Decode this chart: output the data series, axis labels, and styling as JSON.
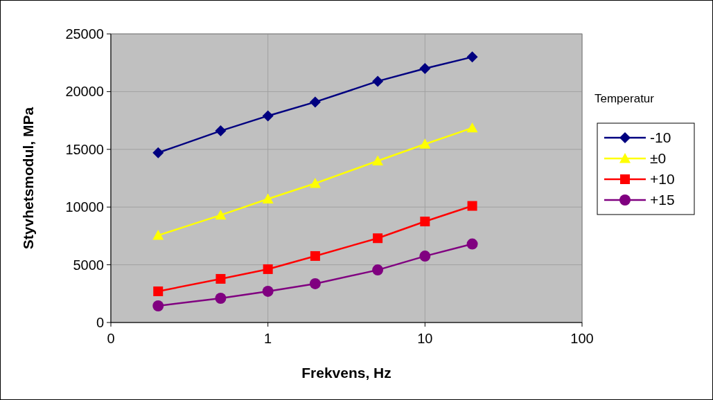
{
  "chart_data": {
    "type": "line",
    "xlabel": "Frekvens, Hz",
    "ylabel": "Styvhetsmodul, MPa",
    "legend_title": "Temperatur",
    "log": "x",
    "x": [
      0.2,
      0.5,
      1,
      2,
      5,
      10,
      20
    ],
    "xlim": [
      0.1,
      100
    ],
    "xticks": [
      {
        "value": 0.1,
        "label": "0"
      },
      1,
      10,
      100
    ],
    "ylim": [
      0,
      25000
    ],
    "yticks": [
      0,
      5000,
      10000,
      15000,
      20000,
      25000
    ],
    "grid": true,
    "legend": "right",
    "line_style": "solid",
    "series": [
      {
        "name": "-10",
        "color": "#000080",
        "marker": "diamond",
        "values": [
          14700,
          16600,
          17900,
          19100,
          20900,
          22000,
          23000
        ]
      },
      {
        "name": "±0",
        "color": "#ffff00",
        "marker": "triangle",
        "values": [
          7550,
          9300,
          10700,
          12050,
          14000,
          15450,
          16850
        ]
      },
      {
        "name": "+10",
        "color": "#ff0000",
        "marker": "square",
        "values": [
          2700,
          3780,
          4620,
          5760,
          7300,
          8750,
          10100
        ]
      },
      {
        "name": "+15",
        "color": "#800080",
        "marker": "circle",
        "values": [
          1440,
          2100,
          2700,
          3360,
          4550,
          5750,
          6800
        ]
      }
    ]
  }
}
